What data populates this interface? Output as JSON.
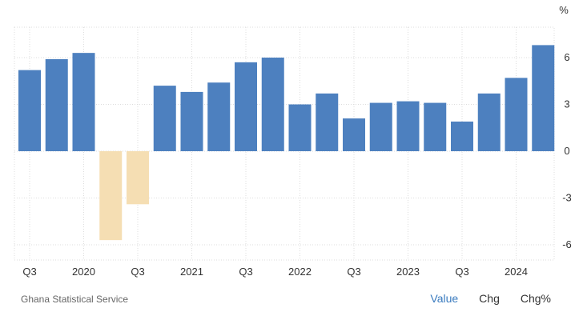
{
  "chart_data": {
    "type": "bar",
    "unit": "%",
    "categories": [
      "2019 Q3",
      "2019 Q4",
      "2020 Q1",
      "2020 Q2",
      "2020 Q3",
      "2020 Q4",
      "2021 Q1",
      "2021 Q2",
      "2021 Q3",
      "2021 Q4",
      "2022 Q1",
      "2022 Q2",
      "2022 Q3",
      "2022 Q4",
      "2023 Q1",
      "2023 Q2",
      "2023 Q3",
      "2023 Q4",
      "2024 Q1",
      "2024 Q2"
    ],
    "values": [
      5.2,
      5.9,
      6.3,
      -5.7,
      -3.4,
      4.2,
      3.8,
      4.4,
      5.7,
      6.0,
      3.0,
      3.7,
      2.1,
      3.1,
      3.2,
      3.1,
      1.9,
      3.7,
      4.7,
      6.8
    ],
    "x_tick_labels": [
      "Q3",
      "2020",
      "Q3",
      "2021",
      "Q3",
      "2022",
      "Q3",
      "2023",
      "Q3",
      "2024"
    ],
    "y_ticks": [
      6,
      3,
      0,
      -3,
      -6
    ],
    "ylim": [
      -7,
      8
    ],
    "grid": true,
    "colors": {
      "positive": "#4d80bf",
      "negative": "#f5deb3"
    }
  },
  "footer": {
    "source": "Ghana Statistical Service",
    "tabs": [
      "Value",
      "Chg",
      "Chg%"
    ]
  }
}
